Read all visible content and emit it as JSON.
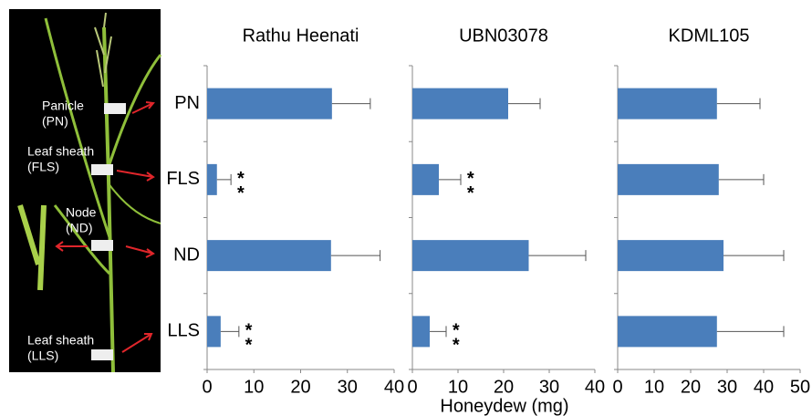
{
  "chart_data": [
    {
      "type": "bar",
      "title": "Rathu Heenati",
      "categories": [
        "PN",
        "FLS",
        "ND",
        "LLS"
      ],
      "values": [
        26.7,
        2.1,
        26.5,
        2.9
      ],
      "errors": [
        8.2,
        3.0,
        10.5,
        3.9
      ],
      "color": "#4a7ebb",
      "xlim": [
        0,
        40
      ],
      "xticks": [
        0,
        10,
        20,
        30,
        40
      ],
      "annotations": [
        {
          "category": "FLS",
          "text": "**"
        },
        {
          "category": "LLS",
          "text": "**"
        }
      ]
    },
    {
      "type": "bar",
      "title": "UBN03078",
      "values": [
        21,
        5.8,
        25.5,
        3.8
      ],
      "errors": [
        7,
        4.8,
        12.5,
        3.6
      ],
      "color": "#4a7ebb",
      "xlim": [
        0,
        40
      ],
      "xticks": [
        0,
        10,
        20,
        30,
        40
      ],
      "annotations": [
        {
          "category": "FLS",
          "text": "**"
        },
        {
          "category": "LLS",
          "text": "**"
        }
      ]
    },
    {
      "type": "bar",
      "title": "KDML105",
      "values": [
        27.2,
        27.7,
        29,
        27.2
      ],
      "errors": [
        11.8,
        12.3,
        16.5,
        18.3
      ],
      "color": "#4a7ebb",
      "xlim": [
        0,
        50
      ],
      "xticks": [
        0,
        10,
        20,
        30,
        40,
        50
      ],
      "annotations": []
    }
  ],
  "x_label": "Honeydew (mg)",
  "photo_labels": [
    [
      "Panicle",
      "(PN)"
    ],
    [
      "Leaf sheath",
      "(FLS)"
    ],
    [
      "Node",
      "(ND)"
    ],
    [
      "Leaf sheath",
      "(LLS)"
    ]
  ]
}
